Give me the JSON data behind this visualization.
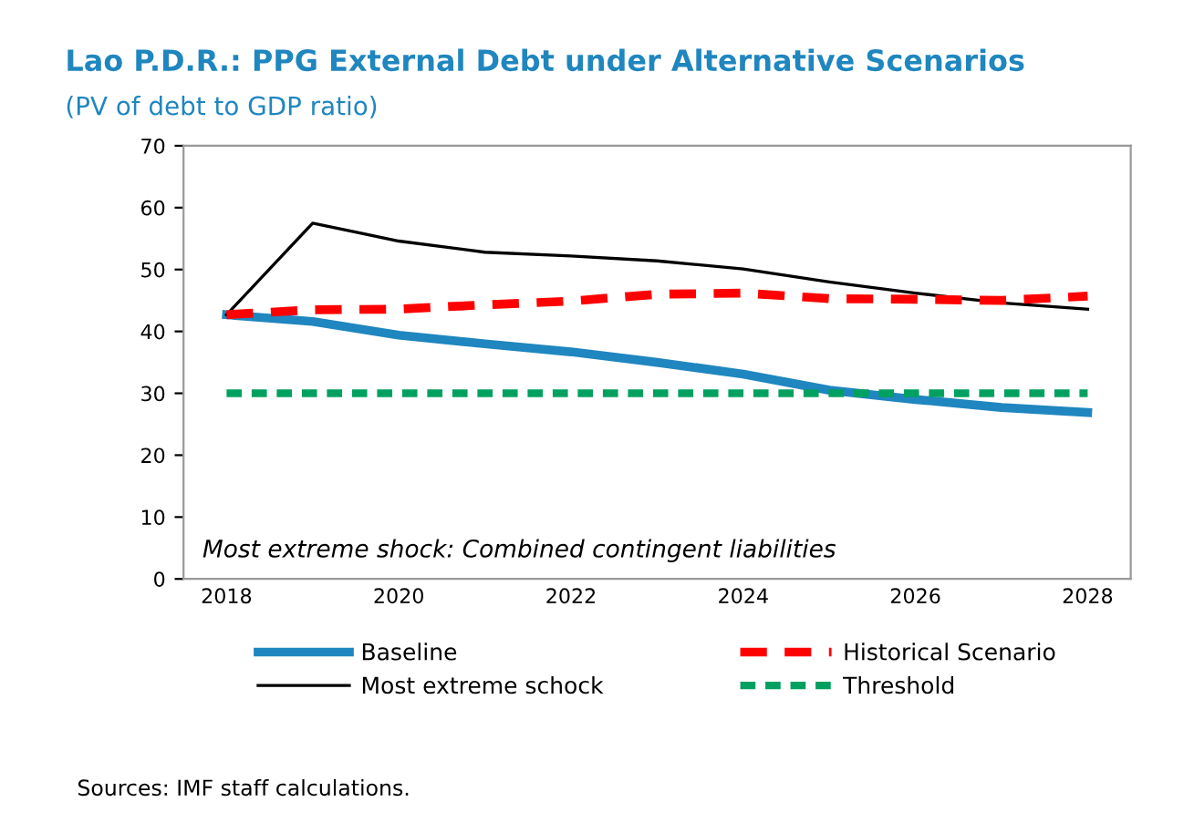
{
  "chart_data": {
    "type": "line",
    "title": "Lao P.D.R.: PPG External Debt under Alternative Scenarios",
    "subtitle": "(PV of debt to GDP ratio)",
    "categories": [
      "2018",
      null,
      "2020",
      null,
      "2022",
      null,
      "2024",
      null,
      "2026",
      null,
      "2028"
    ],
    "series": [
      {
        "name": "Baseline",
        "color": "#1f86bf",
        "line_style": "solid",
        "values": [
          42.7,
          41.6,
          39.4,
          38.0,
          36.7,
          35.0,
          33.1,
          30.5,
          29.0,
          27.7,
          26.9
        ]
      },
      {
        "name": "Most extreme schock",
        "color": "#000000",
        "line_style": "solid",
        "values": [
          42.7,
          57.5,
          54.6,
          52.8,
          52.2,
          51.4,
          50.1,
          48.0,
          46.2,
          44.6,
          43.6
        ]
      },
      {
        "name": "Historical Scenario",
        "color": "#ff0000",
        "line_style": "dashed",
        "values": [
          42.7,
          43.5,
          43.6,
          44.3,
          44.9,
          46.0,
          46.2,
          45.3,
          45.2,
          45.0,
          45.7
        ]
      },
      {
        "name": "Threshold",
        "color": "#00a160",
        "line_style": "dashed",
        "values": [
          30,
          30,
          30,
          30,
          30,
          30,
          30,
          30,
          30,
          30,
          30
        ]
      }
    ],
    "ylim": [
      0,
      70
    ],
    "yticks": [
      0,
      10,
      20,
      30,
      40,
      50,
      60,
      70
    ],
    "grid": false,
    "legend": "bottom",
    "marker": "none",
    "annotations": [
      "Most extreme shock: Combined contingent liabilities",
      "Sources: IMF staff calculations."
    ]
  }
}
